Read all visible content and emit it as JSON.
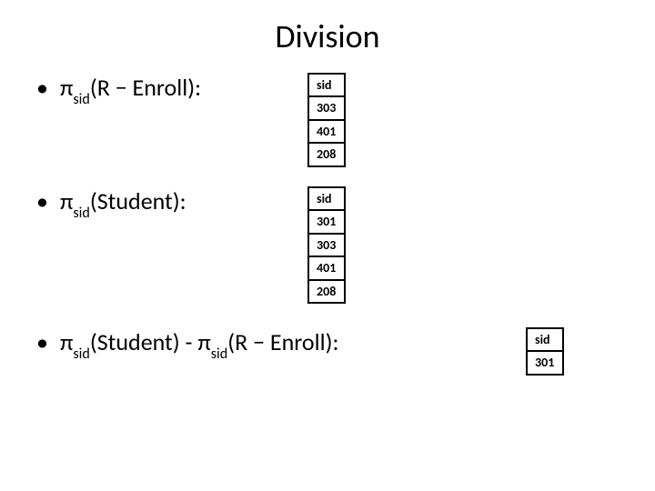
{
  "title": "Division",
  "items": [
    {
      "prefix": "π",
      "sub": "sid",
      "rest": "(R − Enroll):"
    },
    {
      "prefix": "π",
      "sub": "sid",
      "rest": "(Student):"
    }
  ],
  "item3": {
    "p1_prefix": "π",
    "p1_sub": "sid",
    "p1_rest": "(Student) - π",
    "p2_sub": "sid",
    "p2_rest": "(R − Enroll):"
  },
  "tables": {
    "t1": {
      "header": "sid",
      "rows": [
        "303",
        "401",
        "208"
      ]
    },
    "t2": {
      "header": "sid",
      "rows": [
        "301",
        "303",
        "401",
        "208"
      ]
    },
    "t3": {
      "header": "sid",
      "rows": [
        "301"
      ]
    }
  },
  "style": {
    "background_color": "#ffffff",
    "text_color": "#000000",
    "border_color": "#000000",
    "title_fontsize": 36,
    "bullet_fontsize": 26,
    "cell_fontsize": 14,
    "cell_fontweight": 700,
    "border_width": 2
  }
}
